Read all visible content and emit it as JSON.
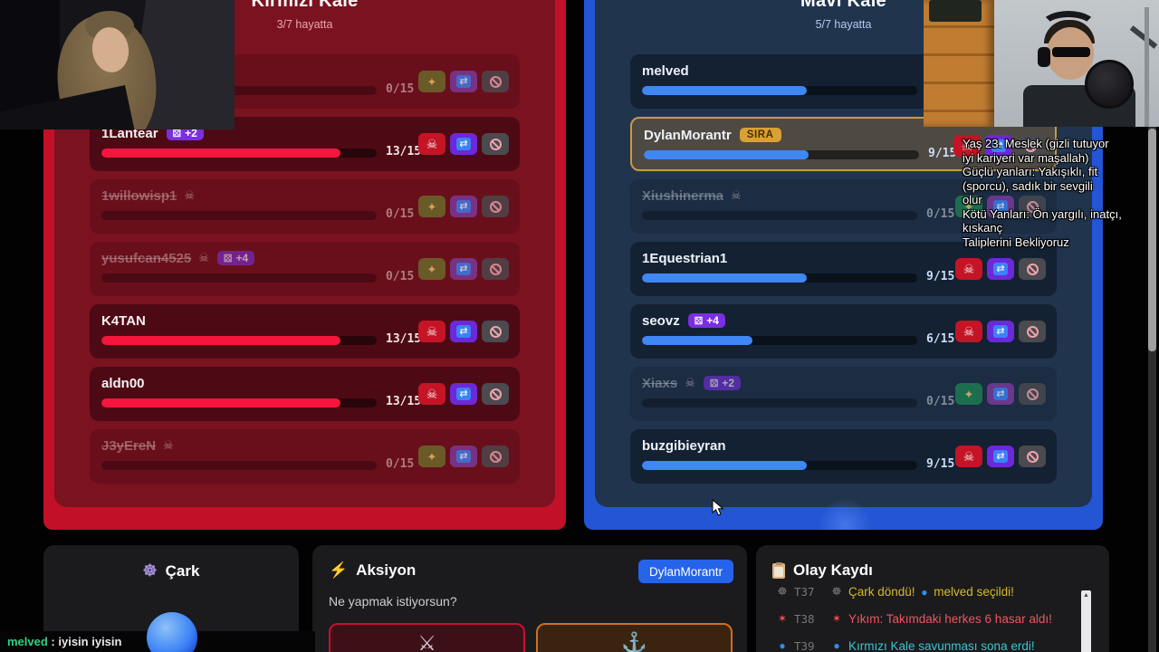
{
  "colors": {
    "red_outer": "#c11027",
    "red_inner": "#7b1220",
    "red_bar": "#f5153d",
    "blue_outer": "#2355d4",
    "blue_inner": "#20344e",
    "blue_bar": "#3f87f5",
    "highlight_border": "#c99b3f",
    "sira_bg": "#d9a033",
    "badge_purple": "#7a2fe0",
    "skull_btn": "#c41425",
    "swap_btn": "#6d28d9",
    "ban_btn": "#4a4a4f",
    "revive_red_side": "#6a6d2c",
    "revive_blue_side": "#1e7f52",
    "action_badge": "#2563eb",
    "attack_border": "#c8102e",
    "defend_border": "#cf6f1f",
    "chat_user_green": "#2fd183",
    "log_yellow": "#d6b92a",
    "log_red": "#ef5560",
    "log_cyan": "#38c5ce"
  },
  "red_team": {
    "title": "Kırmızı Kale",
    "subtitle": "3/7 hayatta",
    "players": [
      {
        "name": "",
        "dead": true,
        "skull": false,
        "badge": null,
        "turn_badge": null,
        "active": false,
        "hp": "0/15",
        "pct": 0
      },
      {
        "name": "1Lantear",
        "dead": false,
        "skull": false,
        "badge": "+2",
        "turn_badge": null,
        "active": false,
        "hp": "13/15",
        "pct": 87
      },
      {
        "name": "1willowisp1",
        "dead": true,
        "skull": true,
        "badge": null,
        "turn_badge": null,
        "active": false,
        "hp": "0/15",
        "pct": 0
      },
      {
        "name": "yusufcan4525",
        "dead": true,
        "skull": true,
        "badge": "+4",
        "turn_badge": null,
        "active": false,
        "hp": "0/15",
        "pct": 0
      },
      {
        "name": "K4TAN",
        "dead": false,
        "skull": false,
        "badge": null,
        "turn_badge": null,
        "active": false,
        "hp": "13/15",
        "pct": 87
      },
      {
        "name": "aldn00",
        "dead": false,
        "skull": false,
        "badge": null,
        "turn_badge": null,
        "active": false,
        "hp": "13/15",
        "pct": 87
      },
      {
        "name": "J3yEreN",
        "dead": true,
        "skull": true,
        "badge": null,
        "turn_badge": null,
        "active": false,
        "hp": "0/15",
        "pct": 0
      }
    ]
  },
  "blue_team": {
    "title": "Mavi Kale",
    "subtitle": "5/7 hayatta",
    "players": [
      {
        "name": "melved",
        "dead": false,
        "skull": false,
        "badge": null,
        "turn_badge": null,
        "active": false,
        "hp": "9/15",
        "pct": 60
      },
      {
        "name": "DylanMorantr",
        "dead": false,
        "skull": false,
        "badge": null,
        "turn_badge": "SIRA",
        "active": true,
        "hp": "9/15",
        "pct": 60
      },
      {
        "name": "Xiushinerma",
        "dead": true,
        "skull": true,
        "badge": null,
        "turn_badge": null,
        "active": false,
        "hp": "0/15",
        "pct": 0
      },
      {
        "name": "1Equestrian1",
        "dead": false,
        "skull": false,
        "badge": null,
        "turn_badge": null,
        "active": false,
        "hp": "9/15",
        "pct": 60
      },
      {
        "name": "seovz",
        "dead": false,
        "skull": false,
        "badge": "+4",
        "turn_badge": null,
        "active": false,
        "hp": "6/15",
        "pct": 40
      },
      {
        "name": "Xiaxs",
        "dead": true,
        "skull": true,
        "badge": "+2",
        "turn_badge": null,
        "active": false,
        "hp": "0/15",
        "pct": 0
      },
      {
        "name": "buzgibieyran",
        "dead": false,
        "skull": false,
        "badge": null,
        "turn_badge": null,
        "active": false,
        "hp": "9/15",
        "pct": 60
      }
    ]
  },
  "panels": {
    "wheel": {
      "title": "Çark",
      "icon": "ferris-wheel-icon"
    },
    "action": {
      "title": "Aksiyon",
      "icon": "lightning-icon",
      "player_badge": "DylanMorantr",
      "prompt": "Ne yapmak istiyorsun?",
      "attack_icon": "crossed-swords-icon",
      "defend_icon": "anchor-icon"
    },
    "log": {
      "title": "Olay Kaydı",
      "icon": "clipboard-icon",
      "entries": [
        {
          "icon": "wheel",
          "turn": "T37",
          "text": "Çark döndü! 🔵 melved seçildi!",
          "color": "log_yellow"
        },
        {
          "icon": "explosion",
          "turn": "T38",
          "text": "Yıkım: Takımdaki herkes 6 hasar aldı!",
          "color": "log_red"
        },
        {
          "icon": "blue",
          "turn": "T39",
          "text": "Kırmızı Kale savunması sona erdi!",
          "color": "log_cyan"
        }
      ]
    }
  },
  "caption_overlay": {
    "lines": [
      "Yaş 23. Meslek (gizli tutuyor",
      "iyi kariyeri var maşallah)",
      "Güçlü yanları: Yakışıklı, fit",
      "(sporcu), sadık bir sevgili",
      "olur",
      "Kötü Yanları: Ön yargılı, inatçı,",
      "kıskanç",
      "Taliplerini Bekliyoruz"
    ]
  },
  "chat_bar": {
    "user": "melved",
    "separator": " : ",
    "message": "iyisin iyisin"
  }
}
